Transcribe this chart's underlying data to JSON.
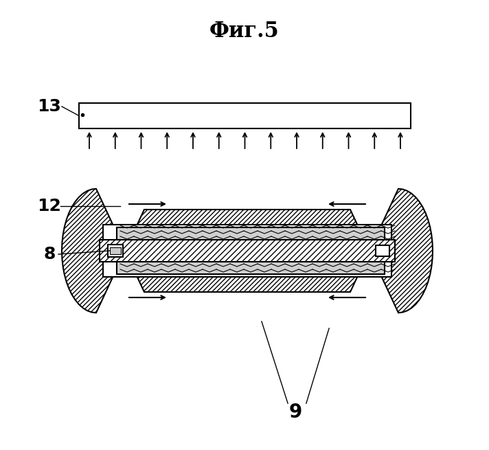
{
  "title": "Фиг.5",
  "label_9": "9",
  "label_8": "8",
  "label_12": "12",
  "label_13": "13",
  "bg_color": "#ffffff",
  "line_color": "#000000",
  "hatch_color": "#000000",
  "arrow_color": "#000000"
}
